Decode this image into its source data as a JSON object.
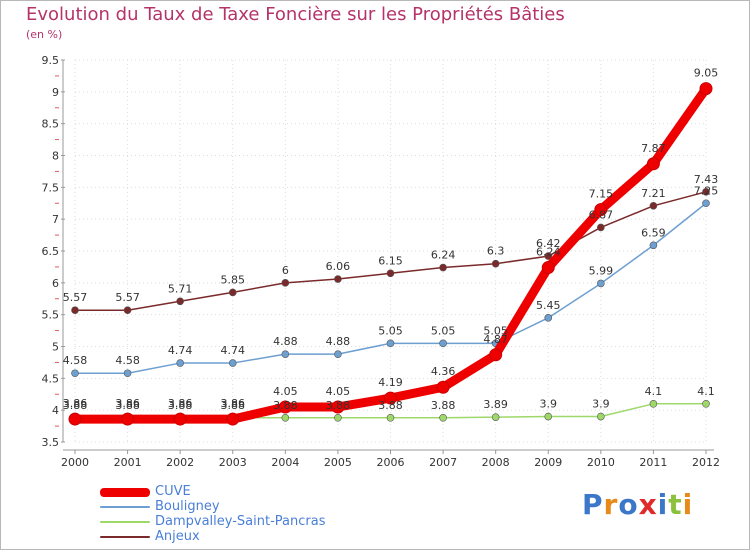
{
  "header": {
    "title": "Evolution du Taux de Taxe Foncière sur les Propriétés Bâties",
    "subtitle": "(en %)"
  },
  "chart_data": {
    "type": "line",
    "title": "Evolution du Taux de Taxe Foncière sur les Propriétés Bâties",
    "subtitle": "(en %)",
    "xlabel": "",
    "ylabel": "",
    "x": [
      2000,
      2001,
      2002,
      2003,
      2004,
      2005,
      2006,
      2007,
      2008,
      2009,
      2010,
      2011,
      2012
    ],
    "ylim": [
      3.5,
      9.5
    ],
    "yticks": [
      3.5,
      4,
      4.5,
      5,
      5.5,
      6,
      6.5,
      7,
      7.5,
      8,
      8.5,
      9,
      9.5
    ],
    "ytick_labels": [
      "3.5",
      "4",
      "4.5",
      "5",
      "5.5",
      "6",
      "6.5",
      "7",
      "7.5",
      "8",
      "8.5",
      "9",
      "9.5"
    ],
    "grid": true,
    "legend_position": "bottom-left",
    "series": [
      {
        "name": "CUVE",
        "color": "#ee0000",
        "width": 9,
        "marker": 6,
        "values": [
          3.86,
          3.86,
          3.86,
          3.86,
          4.05,
          4.05,
          4.19,
          4.36,
          4.87,
          6.24,
          7.15,
          7.87,
          9.05
        ],
        "labels": [
          "3.86",
          "3.86",
          "3.86",
          "3.86",
          "4.05",
          "4.05",
          "4.19",
          "4.36",
          "4.87",
          "6.24",
          "7.15",
          "7.87",
          "9.05"
        ]
      },
      {
        "name": "Bouligney",
        "color": "#6d9fd0",
        "width": 1.5,
        "marker": 3.5,
        "values": [
          4.58,
          4.58,
          4.74,
          4.74,
          4.88,
          4.88,
          5.05,
          5.05,
          5.05,
          5.45,
          5.99,
          6.59,
          7.25
        ],
        "labels": [
          "4.58",
          "4.58",
          "4.74",
          "4.74",
          "4.88",
          "4.88",
          "5.05",
          "5.05",
          "5.05",
          "5.45",
          "5.99",
          "6.59",
          "7.25"
        ]
      },
      {
        "name": "Dampvalley-Saint-Pancras",
        "color": "#9ed86a",
        "width": 1.5,
        "marker": 3.5,
        "values": [
          3.88,
          3.88,
          3.88,
          3.88,
          3.88,
          3.88,
          3.88,
          3.88,
          3.89,
          3.9,
          3.9,
          4.1,
          4.1
        ],
        "labels": [
          "3.88",
          "3.88",
          "3.88",
          "3.88",
          "3.88",
          "3.88",
          "3.88",
          "3.88",
          "3.89",
          "3.9",
          "3.9",
          "4.1",
          "4.1"
        ]
      },
      {
        "name": "Anjeux",
        "color": "#7a2a2a",
        "width": 1.5,
        "marker": 3.5,
        "values": [
          5.57,
          5.57,
          5.71,
          5.85,
          6,
          6.06,
          6.15,
          6.24,
          6.3,
          6.42,
          6.87,
          7.21,
          7.43
        ],
        "labels": [
          "5.57",
          "5.57",
          "5.71",
          "5.85",
          "6",
          "6.06",
          "6.15",
          "6.24",
          "6.3",
          "6.42",
          "6.87",
          "7.21",
          "7.43"
        ]
      }
    ]
  },
  "brand": {
    "logo_letters": [
      {
        "ch": "P",
        "color": "#3b78c9"
      },
      {
        "ch": "r",
        "color": "#e88a1a"
      },
      {
        "ch": "o",
        "color": "#3b78c9"
      },
      {
        "ch": "x",
        "color": "#e02a2a"
      },
      {
        "ch": "i",
        "color": "#3b78c9"
      },
      {
        "ch": "t",
        "color": "#8bc13c"
      },
      {
        "ch": "i",
        "color": "#e88a1a"
      }
    ]
  }
}
